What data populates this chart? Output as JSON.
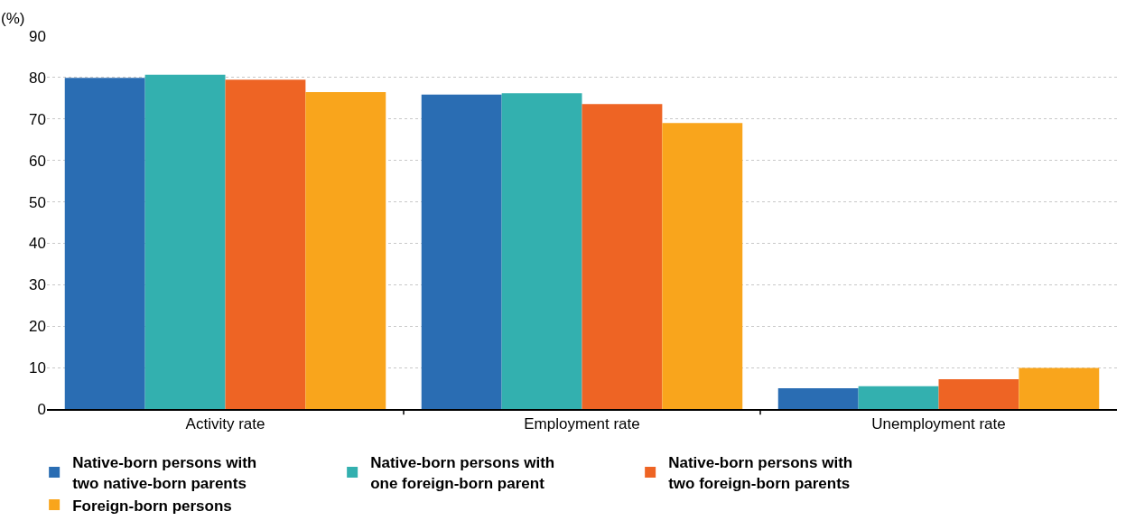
{
  "chart_data": {
    "type": "bar",
    "ylabel": "(%)",
    "categories": [
      "Activity rate",
      "Employment rate",
      "Unemployment rate"
    ],
    "series": [
      {
        "name": "Native-born persons with two native-born parents",
        "color": "#2a6db3",
        "values": [
          79.9,
          75.9,
          5.0
        ]
      },
      {
        "name": "Native-born persons with one foreign-born parent",
        "color": "#33b0af",
        "values": [
          80.7,
          76.2,
          5.5
        ]
      },
      {
        "name": "Native-born persons with two foreign-born parents",
        "color": "#ee6424",
        "values": [
          79.5,
          73.6,
          7.2
        ]
      },
      {
        "name": "Foreign-born persons",
        "color": "#f9a51c",
        "values": [
          76.5,
          69.0,
          9.9
        ]
      }
    ],
    "ylim": [
      0,
      90
    ],
    "yticks": [
      0,
      10,
      20,
      30,
      40,
      50,
      60,
      70,
      80,
      90
    ],
    "grid": "y",
    "legend": "bottom"
  }
}
